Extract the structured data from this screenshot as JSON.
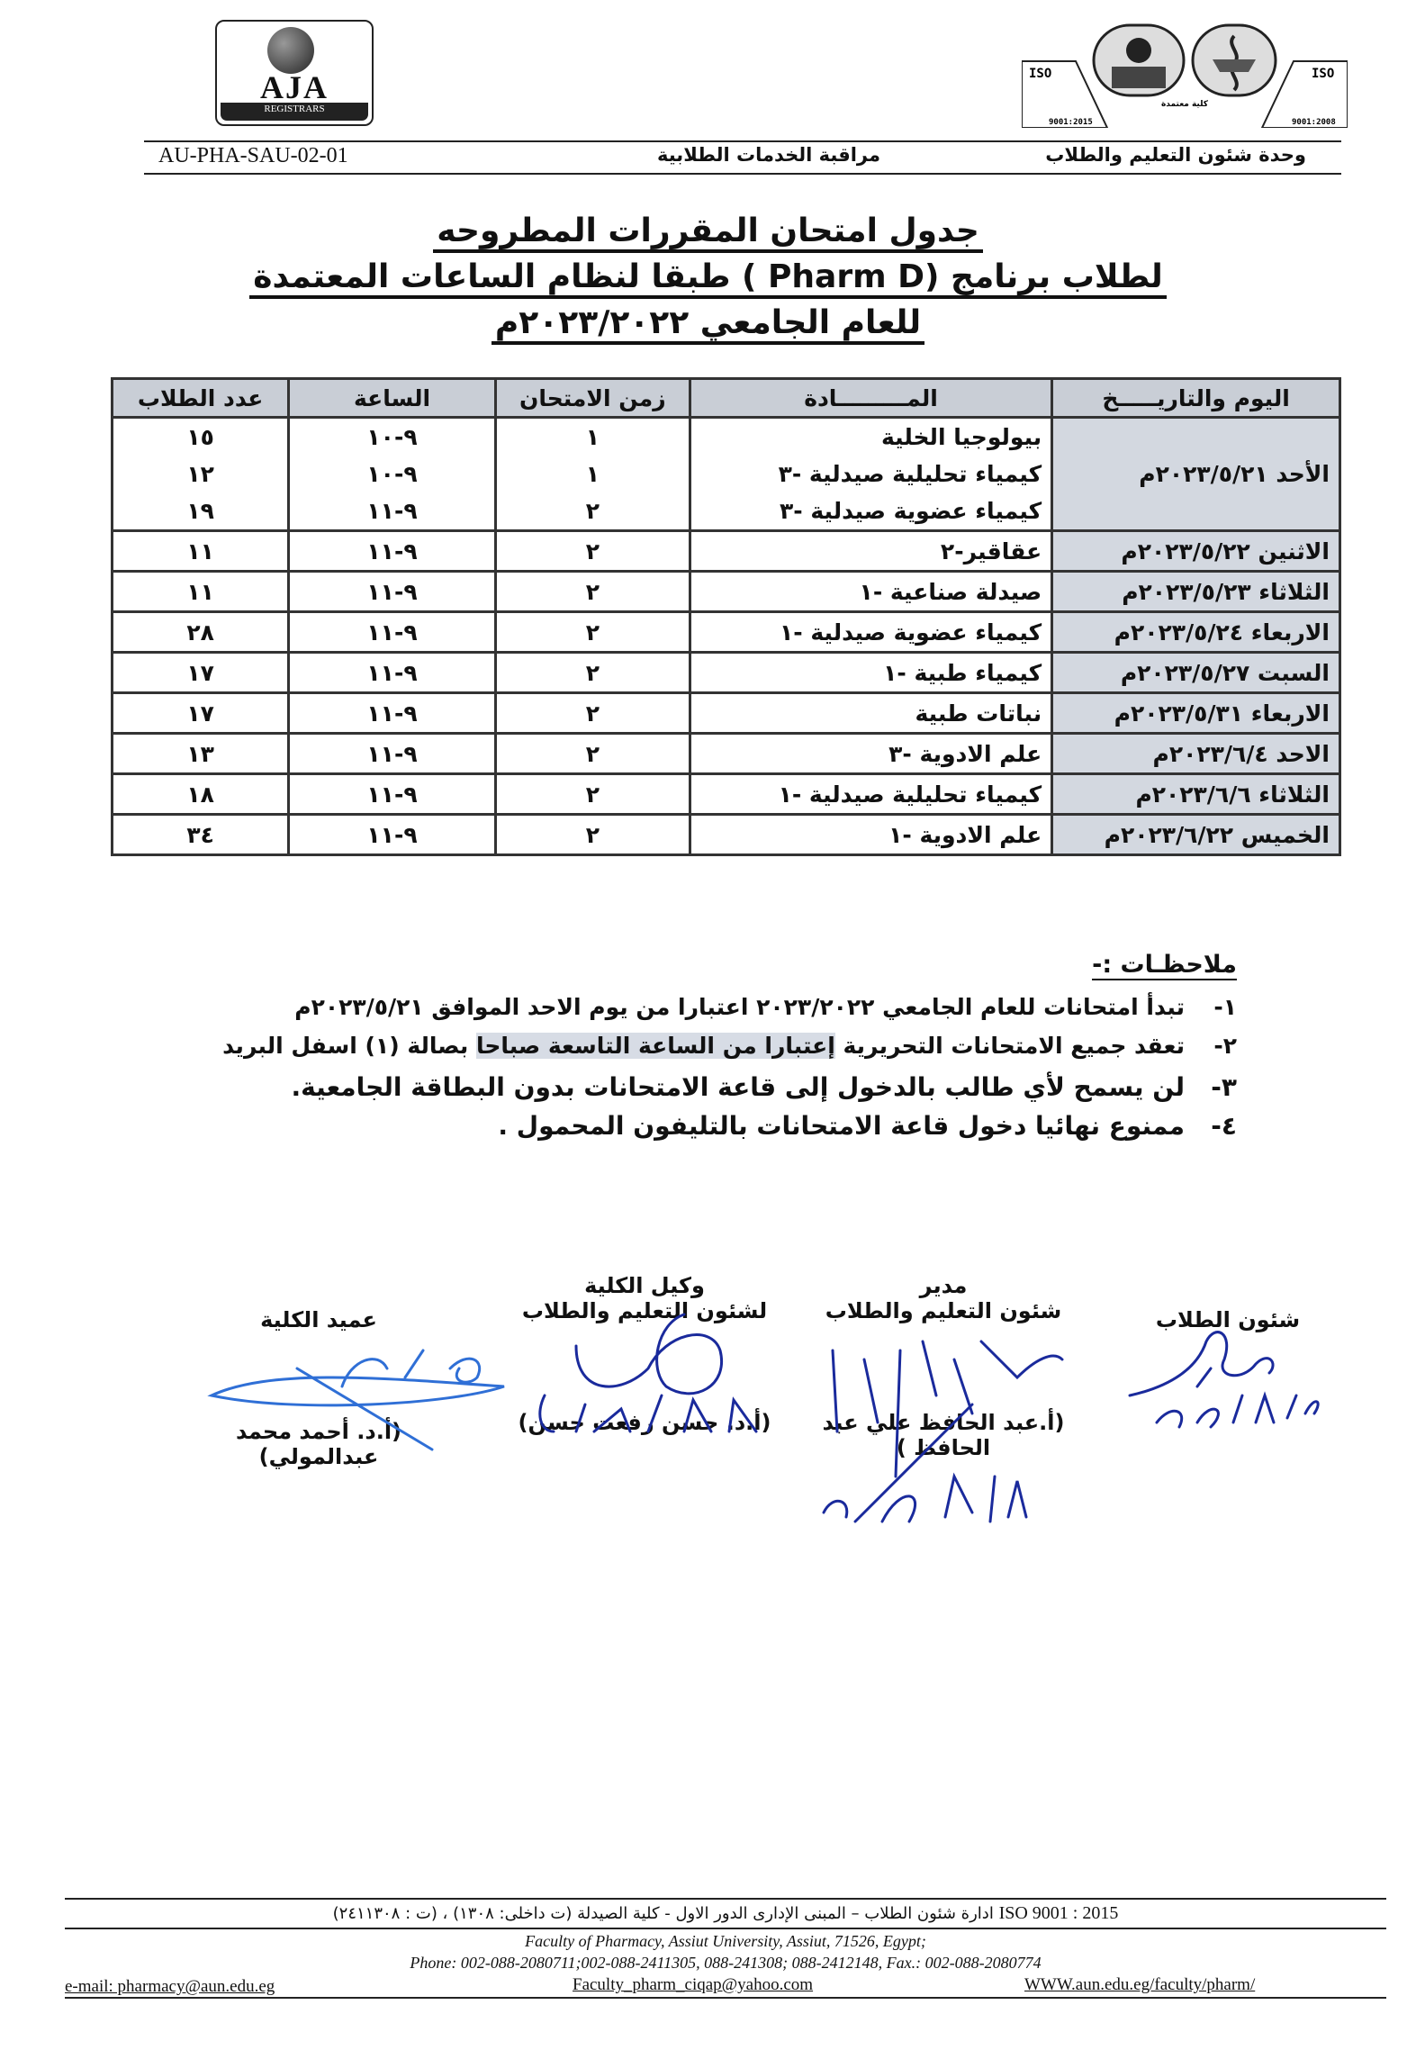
{
  "header": {
    "logo_left_text": "AJA",
    "logo_left_sub": "REGISTRARS",
    "logo_right_iso": "ISO",
    "logo_right_iso_years": [
      "9001:2015",
      "9001:2008"
    ],
    "logo_right_caption": "كلية معتمدة",
    "unit": "وحدة شئون التعليم والطلاب",
    "section": "مراقبة الخدمات الطلابية",
    "code": "AU-PHA-SAU-02-01"
  },
  "title": {
    "line1": "جدول امتحان المقررات المطروحه",
    "line2": "لطلاب برنامج (Pharm D ) طبقا لنظام الساعات المعتمدة",
    "line3": "للعام الجامعي ٢٠٢٣/٢٠٢٢م"
  },
  "table": {
    "headers": [
      "اليوم والتاريـــــخ",
      "المـــــــــادة",
      "زمن الامتحان",
      "الساعة",
      "عدد الطلاب"
    ],
    "rows": [
      {
        "date": "الأحد ٢٠٢٣/٥/٢١م",
        "items": [
          {
            "subject": "بيولوجيا الخلية",
            "duration": "١",
            "time": "٩-١٠",
            "students": "١٥"
          },
          {
            "subject": "كيمياء تحليلية صيدلية -٣",
            "duration": "١",
            "time": "٩-١٠",
            "students": "١٢"
          },
          {
            "subject": "كيمياء عضوية صيدلية -٣",
            "duration": "٢",
            "time": "٩-١١",
            "students": "١٩"
          }
        ]
      },
      {
        "date": "الاثنين ٢٠٢٣/٥/٢٢م",
        "items": [
          {
            "subject": "عقاقير-٢",
            "duration": "٢",
            "time": "٩-١١",
            "students": "١١"
          }
        ]
      },
      {
        "date": "الثلاثاء ٢٠٢٣/٥/٢٣م",
        "items": [
          {
            "subject": "صيدلة صناعية -١",
            "duration": "٢",
            "time": "٩-١١",
            "students": "١١"
          }
        ]
      },
      {
        "date": "الاربعاء ٢٠٢٣/٥/٢٤م",
        "items": [
          {
            "subject": "كيمياء عضوية صيدلية -١",
            "duration": "٢",
            "time": "٩-١١",
            "students": "٢٨"
          }
        ]
      },
      {
        "date": "السبت ٢٠٢٣/٥/٢٧م",
        "items": [
          {
            "subject": "كيمياء طبية -١",
            "duration": "٢",
            "time": "٩-١١",
            "students": "١٧"
          }
        ]
      },
      {
        "date": "الاربعاء ٢٠٢٣/٥/٣١م",
        "items": [
          {
            "subject": "نباتات طبية",
            "duration": "٢",
            "time": "٩-١١",
            "students": "١٧"
          }
        ]
      },
      {
        "date": "الاحد ٢٠٢٣/٦/٤م",
        "items": [
          {
            "subject": "علم الادوية -٣",
            "duration": "٢",
            "time": "٩-١١",
            "students": "١٣"
          }
        ]
      },
      {
        "date": "الثلاثاء ٢٠٢٣/٦/٦م",
        "items": [
          {
            "subject": "كيمياء تحليلية صيدلية -١",
            "duration": "٢",
            "time": "٩-١١",
            "students": "١٨"
          }
        ]
      },
      {
        "date": "الخميس ٢٠٢٣/٦/٢٢م",
        "items": [
          {
            "subject": "علم الادوية -١",
            "duration": "٢",
            "time": "٩-١١",
            "students": "٣٤"
          }
        ]
      }
    ]
  },
  "notes": {
    "title": "ملاحظـات :-",
    "items": [
      {
        "num": "١-",
        "text": "تبدأ امتحانات للعام الجامعي ٢٠٢٣/٢٠٢٢ اعتبارا من يوم الاحد الموافق ٢٠٢٣/٥/٢١م"
      },
      {
        "num": "٢-",
        "pre": "تعقد جميع الامتحانات التحريرية ",
        "highlight": "إعتبارا من الساعة التاسعة صباحا",
        "post": " بصالة (١) اسفل البريد"
      },
      {
        "num": "٣-",
        "text": "لن يسمح لأي طالب بالدخول إلى قاعة الامتحانات بدون البطاقة الجامعية."
      },
      {
        "num": "٤-",
        "text": "ممنوع نهائيا دخول قاعة الامتحانات بالتليفون المحمول ."
      }
    ]
  },
  "signatures": [
    {
      "title1": "",
      "title2": "شئون الطلاب",
      "name": ""
    },
    {
      "title1": "مدير",
      "title2": "شئون التعليم والطلاب",
      "name": "(أ.عبد الحافظ علي عبد الحافظ )"
    },
    {
      "title1": "وكيل الكلية",
      "title2": "لشئون التعليم والطلاب",
      "name": "(أ.د. حسن رفعت حسن)"
    },
    {
      "title1": "",
      "title2": "عميد الكلية",
      "name": "(أ.د. أحمد محمد عبدالمولي)"
    }
  ],
  "signature_ink_color": "#1a2a9c",
  "footer": {
    "address_ar": "ادارة شئون الطلاب – المبنى الإدارى الدور الاول - كلية الصيدلة (ت داخلى: ١٣٠٨) ، (ت : ٢٤١١٣٠٨)",
    "iso": "ISO 9001 : 2015",
    "address_en": "Faculty of Pharmacy, Assiut University, Assiut, 71526, Egypt;",
    "phone": "Phone: 002-088-2080711;002-088-2411305, 088-241308; 088-2412148, Fax.: 002-088-2080774",
    "email": "e-mail: pharmacy@aun.edu.eg",
    "email2": "Faculty_pharm_ciqap@yahoo.com",
    "website": "WWW.aun.edu.eg/faculty/pharm/"
  }
}
